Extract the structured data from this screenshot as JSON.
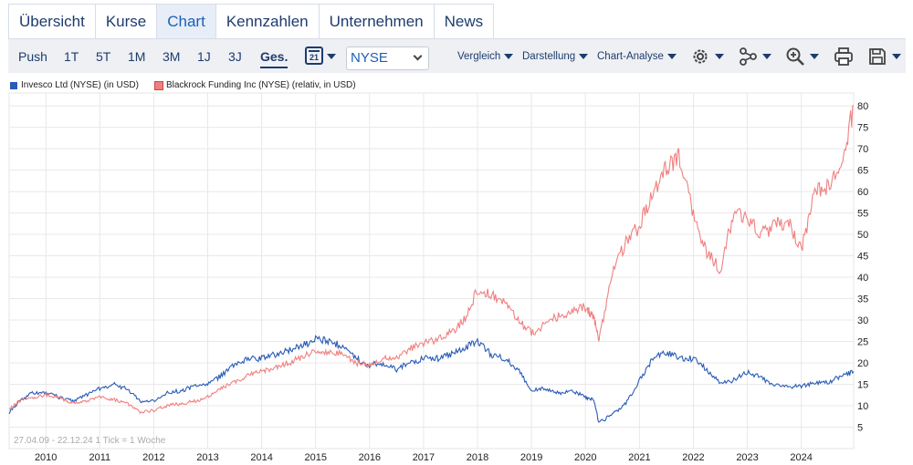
{
  "tabs": [
    {
      "label": "Übersicht",
      "active": false
    },
    {
      "label": "Kurse",
      "active": false
    },
    {
      "label": "Chart",
      "active": true
    },
    {
      "label": "Kennzahlen",
      "active": false
    },
    {
      "label": "Unternehmen",
      "active": false
    },
    {
      "label": "News",
      "active": false
    }
  ],
  "toolbar": {
    "periods": [
      "Push",
      "1T",
      "5T",
      "1M",
      "3M",
      "1J",
      "3J",
      "Ges."
    ],
    "active_period": "Ges.",
    "calendar_day": "21",
    "exchange_select": "NYSE",
    "menus": [
      "Vergleich",
      "Darstellung",
      "Chart-Analyse"
    ],
    "icons": [
      "settings-gear-icon",
      "indicators-icon",
      "zoom-in-icon",
      "print-icon",
      "save-icon"
    ]
  },
  "legend": [
    {
      "label": "Invesco Ltd (NYSE) (in USD)",
      "color": "#2a5bb5"
    },
    {
      "label": "Blackrock Funding Inc (NYSE) (relativ, in USD)",
      "color": "#f08080"
    }
  ],
  "range_note": "27.04.09 - 22.12.24   1 Tick = 1 Woche",
  "chart_data": {
    "type": "line",
    "x_ticks": [
      "2010",
      "2011",
      "2012",
      "2013",
      "2014",
      "2015",
      "2016",
      "2017",
      "2018",
      "2019",
      "2020",
      "2021",
      "2022",
      "2023",
      "2024"
    ],
    "y_ticks": [
      5,
      10,
      15,
      20,
      25,
      30,
      35,
      40,
      45,
      50,
      55,
      60,
      65,
      70,
      75,
      80
    ],
    "ylim": [
      0,
      83
    ],
    "xlim": [
      2009.32,
      2024.97
    ],
    "grid": true,
    "y_axis_side": "right",
    "series": [
      {
        "name": "Invesco Ltd (NYSE) (in USD)",
        "color": "#2a5bb5",
        "x": [
          2009.32,
          2009.5,
          2009.75,
          2010.0,
          2010.25,
          2010.5,
          2010.75,
          2011.0,
          2011.25,
          2011.5,
          2011.75,
          2012.0,
          2012.25,
          2012.5,
          2012.75,
          2013.0,
          2013.25,
          2013.5,
          2013.75,
          2014.0,
          2014.25,
          2014.5,
          2014.75,
          2015.0,
          2015.25,
          2015.5,
          2015.75,
          2016.0,
          2016.25,
          2016.5,
          2016.75,
          2017.0,
          2017.25,
          2017.5,
          2017.75,
          2018.0,
          2018.25,
          2018.5,
          2018.75,
          2019.0,
          2019.25,
          2019.5,
          2019.75,
          2020.0,
          2020.15,
          2020.25,
          2020.5,
          2020.75,
          2021.0,
          2021.25,
          2021.5,
          2021.75,
          2022.0,
          2022.25,
          2022.5,
          2022.75,
          2023.0,
          2023.25,
          2023.5,
          2023.75,
          2024.0,
          2024.25,
          2024.5,
          2024.75,
          2024.97
        ],
        "y": [
          8.5,
          11,
          13,
          13,
          12,
          11,
          12.5,
          14,
          15,
          14,
          11,
          11,
          13,
          13.5,
          14.5,
          15,
          17,
          19.5,
          21,
          21,
          22,
          23,
          24,
          25.5,
          25,
          24,
          21,
          19.5,
          20,
          18.5,
          20,
          21,
          21,
          22,
          23.5,
          25,
          22,
          21,
          18.5,
          13.5,
          14,
          13,
          13.5,
          12,
          11.5,
          6,
          8,
          10.5,
          16,
          21,
          22.5,
          21,
          21,
          18.5,
          15,
          16,
          18,
          16.5,
          15,
          14.5,
          14.5,
          15.5,
          15.5,
          17,
          18
        ]
      },
      {
        "name": "Blackrock Funding Inc (NYSE) (relativ, in USD)",
        "color": "#f08080",
        "x": [
          2009.32,
          2009.5,
          2009.75,
          2010.0,
          2010.25,
          2010.5,
          2010.75,
          2011.0,
          2011.25,
          2011.5,
          2011.75,
          2012.0,
          2012.25,
          2012.5,
          2012.75,
          2013.0,
          2013.25,
          2013.5,
          2013.75,
          2014.0,
          2014.25,
          2014.5,
          2014.75,
          2015.0,
          2015.25,
          2015.5,
          2015.75,
          2016.0,
          2016.25,
          2016.5,
          2016.75,
          2017.0,
          2017.25,
          2017.5,
          2017.75,
          2018.0,
          2018.25,
          2018.5,
          2018.75,
          2019.0,
          2019.25,
          2019.5,
          2019.75,
          2020.0,
          2020.15,
          2020.25,
          2020.5,
          2020.75,
          2021.0,
          2021.25,
          2021.5,
          2021.75,
          2022.0,
          2022.25,
          2022.5,
          2022.75,
          2023.0,
          2023.25,
          2023.5,
          2023.75,
          2024.0,
          2024.25,
          2024.5,
          2024.75,
          2024.97
        ],
        "y": [
          9,
          11,
          12,
          12.5,
          12,
          10.5,
          11,
          12,
          11.5,
          10.5,
          8.5,
          9,
          10,
          10.5,
          11,
          12,
          14,
          15.5,
          17,
          18,
          19,
          20,
          21.5,
          23,
          22.5,
          22,
          20,
          19.5,
          21,
          21,
          23.5,
          24.5,
          25.5,
          27,
          30,
          37,
          36,
          34.5,
          30,
          27,
          29,
          31,
          32,
          33,
          31,
          25,
          42,
          48,
          52,
          60,
          66,
          68,
          54,
          46,
          42,
          55,
          54,
          50,
          52,
          53,
          46,
          60,
          61,
          66,
          80
        ]
      }
    ]
  }
}
